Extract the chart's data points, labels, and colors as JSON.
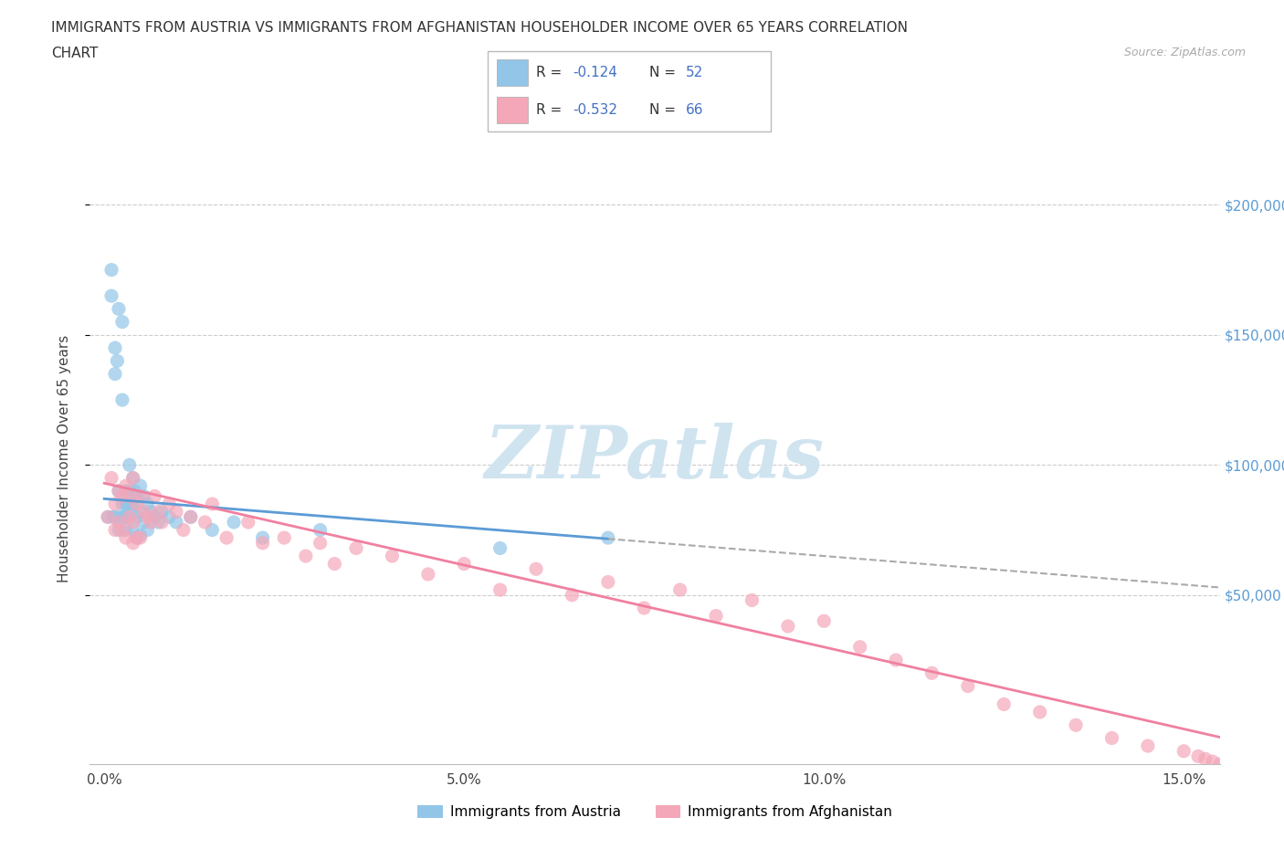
{
  "title_line1": "IMMIGRANTS FROM AUSTRIA VS IMMIGRANTS FROM AFGHANISTAN HOUSEHOLDER INCOME OVER 65 YEARS CORRELATION",
  "title_line2": "CHART",
  "source_text": "Source: ZipAtlas.com",
  "ylabel": "Householder Income Over 65 years",
  "xlabel_ticks": [
    "0.0%",
    "5.0%",
    "10.0%",
    "15.0%"
  ],
  "xlabel_tick_vals": [
    0.0,
    5.0,
    10.0,
    15.0
  ],
  "ytick_labels": [
    "$50,000",
    "$100,000",
    "$150,000",
    "$200,000"
  ],
  "ytick_vals": [
    50000,
    100000,
    150000,
    200000
  ],
  "xlim": [
    -0.2,
    15.5
  ],
  "ylim": [
    -15000,
    220000
  ],
  "austria_R": -0.124,
  "austria_N": 52,
  "afghanistan_R": -0.532,
  "afghanistan_N": 66,
  "austria_color": "#92C5E8",
  "afghanistan_color": "#F4A7B9",
  "austria_line_color": "#5B9BD5",
  "afghanistan_line_color": "#F080A0",
  "dashed_line_color": "#AAAAAA",
  "watermark_text": "ZIPatlas",
  "watermark_color": "#D0E4F0",
  "legend_blue_text_color": "#4472C4",
  "legend_austria_label": "Immigrants from Austria",
  "legend_afghanistan_label": "Immigrants from Afghanistan",
  "austria_scatter_x": [
    0.05,
    0.1,
    0.1,
    0.12,
    0.15,
    0.15,
    0.15,
    0.18,
    0.2,
    0.2,
    0.2,
    0.22,
    0.25,
    0.25,
    0.25,
    0.28,
    0.3,
    0.3,
    0.3,
    0.3,
    0.32,
    0.35,
    0.35,
    0.35,
    0.38,
    0.4,
    0.4,
    0.4,
    0.42,
    0.45,
    0.45,
    0.45,
    0.5,
    0.5,
    0.5,
    0.55,
    0.55,
    0.6,
    0.6,
    0.65,
    0.7,
    0.75,
    0.8,
    0.9,
    1.0,
    1.2,
    1.5,
    1.8,
    2.2,
    3.0,
    5.5,
    7.0
  ],
  "austria_scatter_y": [
    80000,
    175000,
    165000,
    80000,
    145000,
    135000,
    80000,
    140000,
    160000,
    90000,
    75000,
    80000,
    155000,
    125000,
    85000,
    80000,
    90000,
    85000,
    80000,
    75000,
    85000,
    100000,
    90000,
    80000,
    85000,
    95000,
    85000,
    75000,
    90000,
    88000,
    80000,
    72000,
    92000,
    82000,
    73000,
    88000,
    78000,
    85000,
    75000,
    82000,
    80000,
    78000,
    82000,
    80000,
    78000,
    80000,
    75000,
    78000,
    72000,
    75000,
    68000,
    72000
  ],
  "afghanistan_scatter_x": [
    0.05,
    0.1,
    0.15,
    0.15,
    0.2,
    0.2,
    0.25,
    0.25,
    0.3,
    0.3,
    0.35,
    0.35,
    0.4,
    0.4,
    0.4,
    0.45,
    0.45,
    0.5,
    0.5,
    0.55,
    0.6,
    0.65,
    0.7,
    0.75,
    0.8,
    0.9,
    1.0,
    1.1,
    1.2,
    1.4,
    1.5,
    1.7,
    2.0,
    2.2,
    2.5,
    2.8,
    3.0,
    3.2,
    3.5,
    4.0,
    4.5,
    5.0,
    5.5,
    6.0,
    6.5,
    7.0,
    7.5,
    8.0,
    8.5,
    9.0,
    9.5,
    10.0,
    10.5,
    11.0,
    11.5,
    12.0,
    12.5,
    13.0,
    13.5,
    14.0,
    14.5,
    15.0,
    15.2,
    15.3,
    15.4,
    15.5
  ],
  "afghanistan_scatter_y": [
    80000,
    95000,
    85000,
    75000,
    90000,
    78000,
    88000,
    75000,
    92000,
    72000,
    88000,
    80000,
    95000,
    78000,
    70000,
    85000,
    72000,
    88000,
    72000,
    82000,
    80000,
    78000,
    88000,
    82000,
    78000,
    85000,
    82000,
    75000,
    80000,
    78000,
    85000,
    72000,
    78000,
    70000,
    72000,
    65000,
    70000,
    62000,
    68000,
    65000,
    58000,
    62000,
    52000,
    60000,
    50000,
    55000,
    45000,
    52000,
    42000,
    48000,
    38000,
    40000,
    30000,
    25000,
    20000,
    15000,
    8000,
    5000,
    0,
    -5000,
    -8000,
    -10000,
    -12000,
    -13000,
    -14000,
    -15000
  ]
}
